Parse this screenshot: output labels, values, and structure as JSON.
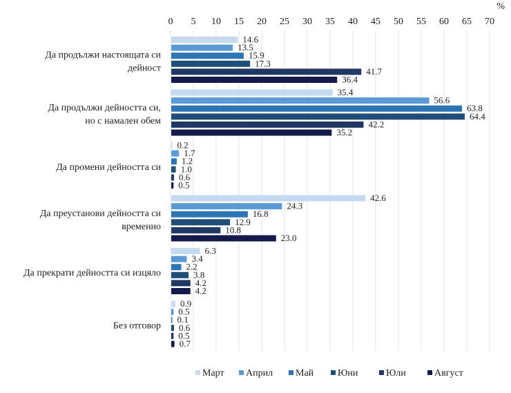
{
  "chart_data": {
    "type": "bar",
    "orientation": "horizontal",
    "title": "",
    "xlabel": "",
    "ylabel": "",
    "unit_label": "%",
    "xlim": [
      0,
      70
    ],
    "x_ticks": [
      0,
      5,
      10,
      15,
      20,
      25,
      30,
      35,
      40,
      45,
      50,
      55,
      60,
      65,
      70
    ],
    "x_axis_position": "top",
    "grid": true,
    "legend_position": "bottom",
    "categories": [
      [
        "Да продължи настоящата си",
        "дейност"
      ],
      [
        "Да продължи дейността си,",
        "но с намален обем"
      ],
      [
        "Да промени дейността си"
      ],
      [
        "Да преустанови дейността си",
        "временно"
      ],
      [
        "Да прекрати дейността си изцяло"
      ],
      [
        "Без отговор"
      ]
    ],
    "series": [
      {
        "name": "Март",
        "color": "#c5daf1",
        "values": [
          14.6,
          35.4,
          0.2,
          42.6,
          6.3,
          0.9
        ]
      },
      {
        "name": "Април",
        "color": "#5b9bd5",
        "values": [
          13.5,
          56.6,
          1.7,
          24.3,
          3.4,
          0.5
        ]
      },
      {
        "name": "Май",
        "color": "#2e75b6",
        "values": [
          15.9,
          63.8,
          1.2,
          16.8,
          2.2,
          0.1
        ]
      },
      {
        "name": "Юни",
        "color": "#1f4e79",
        "values": [
          17.3,
          64.4,
          1.0,
          12.9,
          3.8,
          0.6
        ]
      },
      {
        "name": "Юли",
        "color": "#203864",
        "values": [
          41.7,
          42.2,
          0.6,
          10.8,
          4.2,
          0.5
        ]
      },
      {
        "name": "Август",
        "color": "#141a4a",
        "values": [
          36.4,
          35.2,
          0.5,
          23.0,
          4.2,
          0.7
        ]
      }
    ]
  }
}
